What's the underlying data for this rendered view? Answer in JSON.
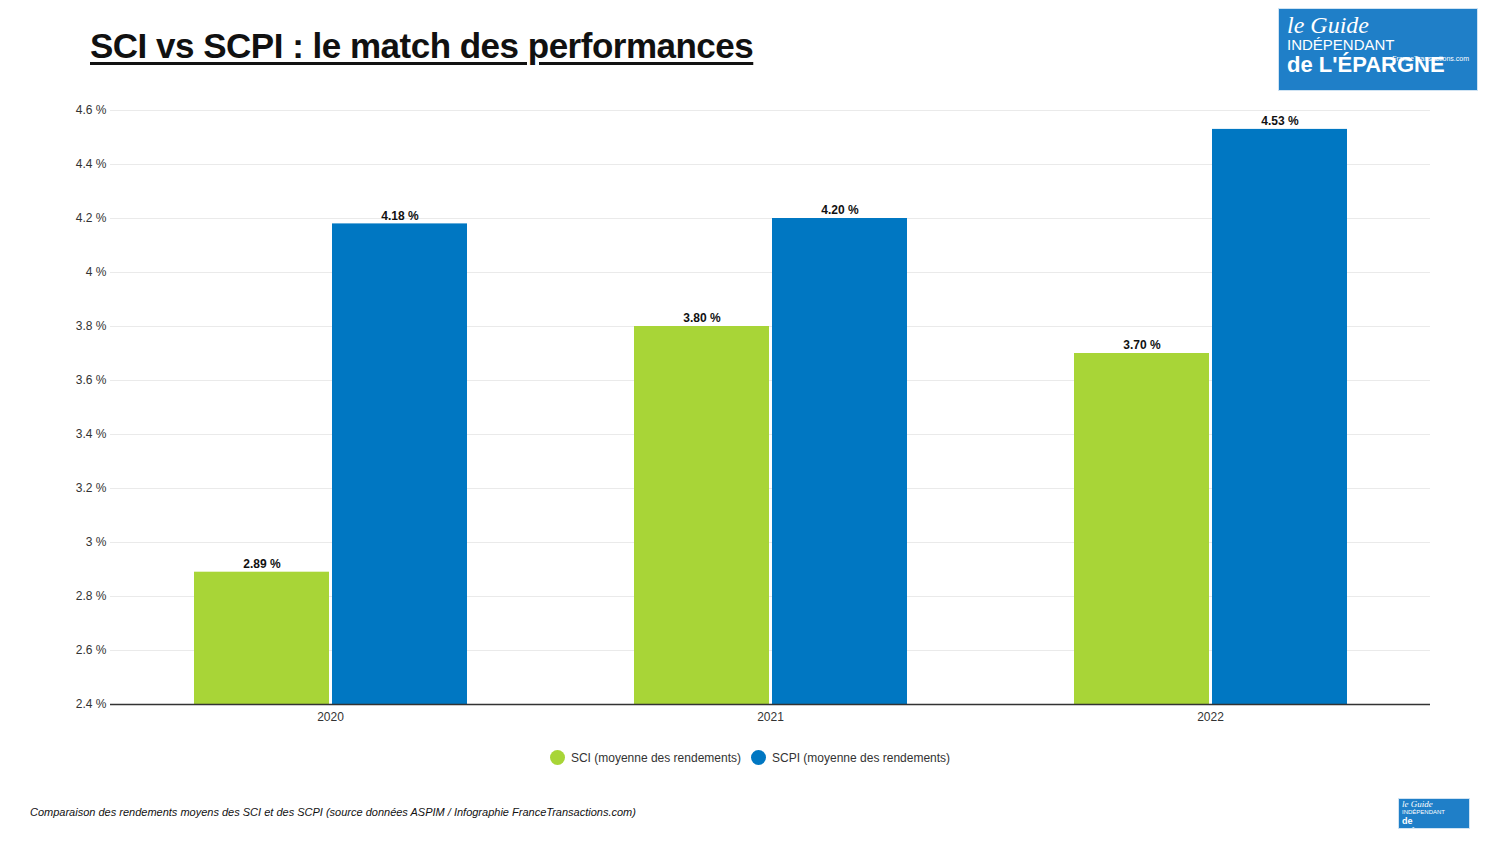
{
  "chart_data": {
    "type": "bar",
    "title": "SCI vs SCPI : le match des performances",
    "caption": "Comparaison des rendements moyens des SCI et des SCPI (source données ASPIM / Infographie FranceTransactions.com)",
    "annotations": [
      "le Guide",
      "INDÉPENDANT",
      "de L'ÉPARGNE",
      "FranceTransactions.com"
    ],
    "categories": [
      "2020",
      "2021",
      "2022"
    ],
    "series": [
      {
        "name": "SCI (moyenne des rendements)",
        "color": "#a8d537",
        "values": [
          2.89,
          3.8,
          3.7
        ],
        "value_labels": [
          "2.89 %",
          "3.80 %",
          "3.70 %"
        ]
      },
      {
        "name": "SCPI (moyenne des rendements)",
        "color": "#0077c2",
        "values": [
          4.18,
          4.2,
          4.53
        ],
        "value_labels": [
          "4.18 %",
          "4.20 %",
          "4.53 %"
        ]
      }
    ],
    "ylim": [
      2.4,
      4.6
    ],
    "yticks": [
      {
        "value": 2.4,
        "label": "2.4 %"
      },
      {
        "value": 2.6,
        "label": "2.6 %"
      },
      {
        "value": 2.8,
        "label": "2.8 %"
      },
      {
        "value": 3,
        "label": "3 %"
      },
      {
        "value": 3.2,
        "label": "3.2 %"
      },
      {
        "value": 3.4,
        "label": "3.4 %"
      },
      {
        "value": 3.6,
        "label": "3.6 %"
      },
      {
        "value": 3.8,
        "label": "3.8 %"
      },
      {
        "value": 4,
        "label": "4 %"
      },
      {
        "value": 4.2,
        "label": "4.2 %"
      },
      {
        "value": 4.4,
        "label": "4.4 %"
      },
      {
        "value": 4.6,
        "label": "4.6 %"
      }
    ],
    "grid": true,
    "data_labels": true,
    "legend": "bottom"
  }
}
